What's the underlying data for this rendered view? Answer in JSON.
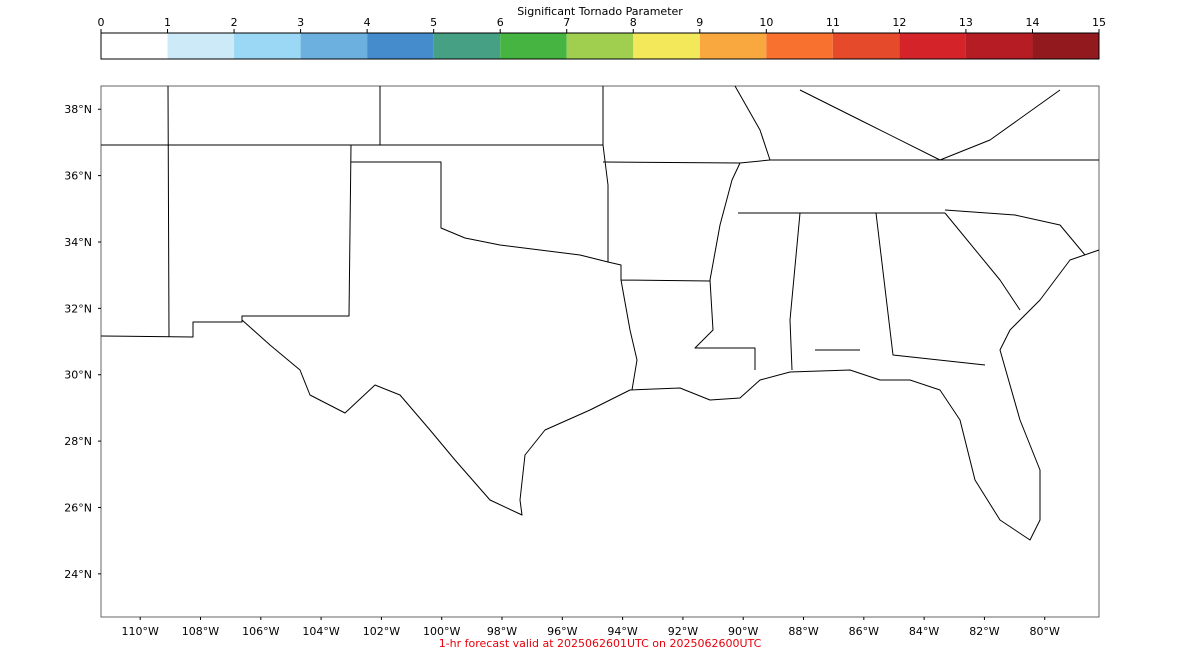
{
  "colorbar": {
    "label": "Significant Tornado Parameter",
    "range": [
      0,
      15
    ],
    "ticks": [
      0,
      1,
      2,
      3,
      4,
      5,
      6,
      7,
      8,
      9,
      10,
      11,
      12,
      13,
      14,
      15
    ],
    "colors": [
      "#ffffff",
      "#cdeaf8",
      "#9ad8f5",
      "#6cb0df",
      "#448ccc",
      "#46a084",
      "#46b440",
      "#a0cf50",
      "#f3e75a",
      "#f9a840",
      "#f8712e",
      "#e54a2b",
      "#d5232a",
      "#b51c23",
      "#921a1e"
    ]
  },
  "map": {
    "xlim": [
      -111.3,
      -78.2
    ],
    "ylim": [
      22.7,
      38.7
    ],
    "xticks": [
      {
        "value": -110,
        "label": "110°W"
      },
      {
        "value": -108,
        "label": "108°W"
      },
      {
        "value": -106,
        "label": "106°W"
      },
      {
        "value": -104,
        "label": "104°W"
      },
      {
        "value": -102,
        "label": "102°W"
      },
      {
        "value": -100,
        "label": "100°W"
      },
      {
        "value": -98,
        "label": "98°W"
      },
      {
        "value": -96,
        "label": "96°W"
      },
      {
        "value": -94,
        "label": "94°W"
      },
      {
        "value": -92,
        "label": "92°W"
      },
      {
        "value": -90,
        "label": "90°W"
      },
      {
        "value": -88,
        "label": "88°W"
      },
      {
        "value": -86,
        "label": "86°W"
      },
      {
        "value": -84,
        "label": "84°W"
      },
      {
        "value": -82,
        "label": "82°W"
      },
      {
        "value": -80,
        "label": "80°W"
      }
    ],
    "yticks": [
      {
        "value": 38,
        "label": "38°N"
      },
      {
        "value": 36,
        "label": "36°N"
      },
      {
        "value": 34,
        "label": "34°N"
      },
      {
        "value": 32,
        "label": "32°N"
      },
      {
        "value": 30,
        "label": "30°N"
      },
      {
        "value": 28,
        "label": "28°N"
      },
      {
        "value": 26,
        "label": "26°N"
      },
      {
        "value": 24,
        "label": "24°N"
      }
    ]
  },
  "footer": "1-hr forecast valid at 2025062601UTC on 2025062600UTC"
}
